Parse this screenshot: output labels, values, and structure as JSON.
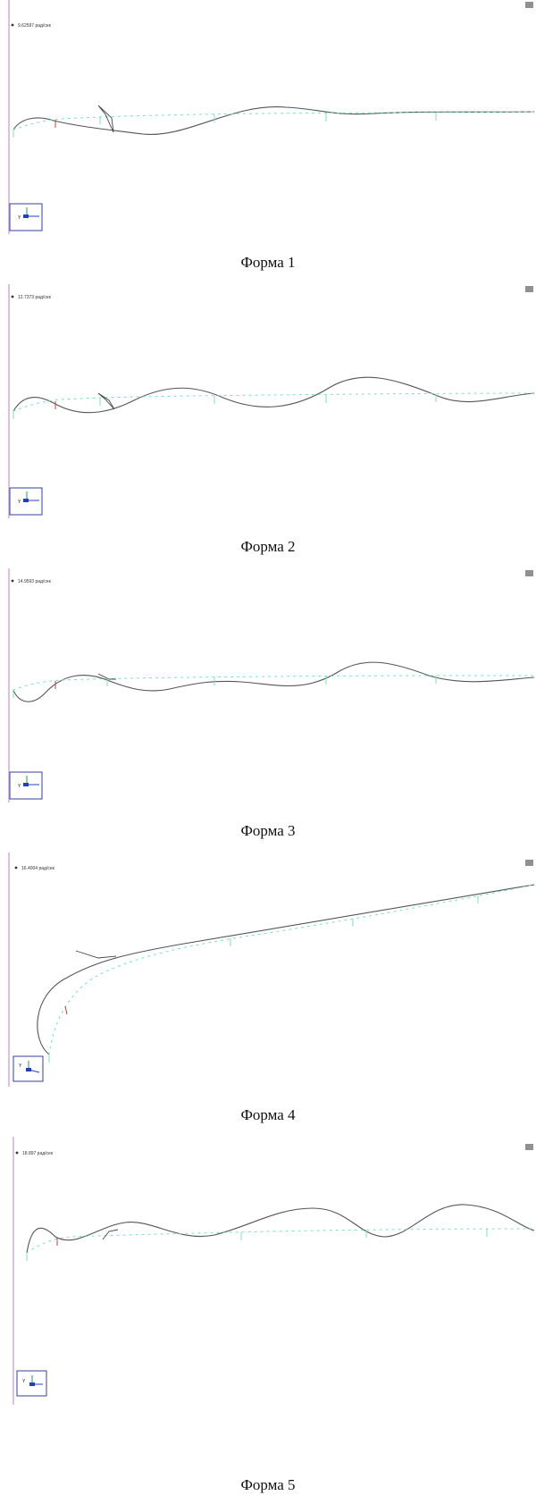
{
  "colors": {
    "axis_line": "#d8a8d8",
    "deformed": "#555555",
    "undeformed": "#6fe3b8",
    "support": "#7fe0b0",
    "marker": "#c04040",
    "triad_x": "#2040c0",
    "triad_y": "#20a040",
    "corner": "#909090"
  },
  "panels": [
    {
      "frequency_label": "9.62597 рад/сек",
      "caption": "Форма 1"
    },
    {
      "frequency_label": "12.7373 рад/сек",
      "caption": "Форма 2"
    },
    {
      "frequency_label": "14.9593 рад/сек",
      "caption": "Форма 3"
    },
    {
      "frequency_label": "16.4004 рад/сек",
      "caption": "Форма 4"
    },
    {
      "frequency_label": "18.897 рад/сек",
      "caption": "Форма 5"
    }
  ],
  "triad": {
    "y_label": "Y"
  }
}
